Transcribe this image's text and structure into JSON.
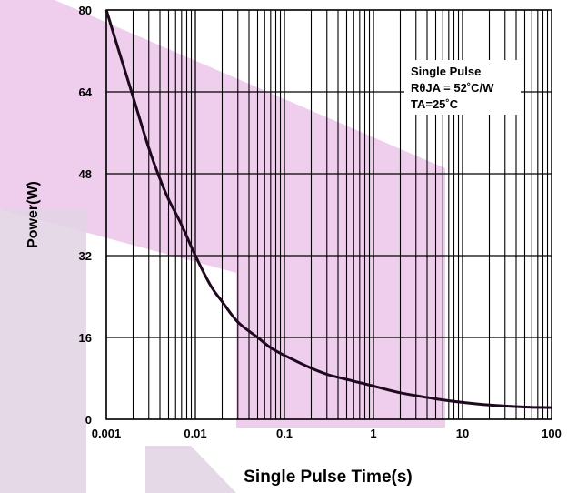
{
  "chart_data": {
    "type": "line",
    "xlabel": "Single Pulse Time(s)",
    "ylabel": "Power(W)",
    "x_scale": "log",
    "xlim": [
      0.001,
      100
    ],
    "ylim": [
      0,
      80
    ],
    "x_ticks": [
      "0.001",
      "0.01",
      "0.1",
      "1",
      "10",
      "100"
    ],
    "y_ticks": [
      "0",
      "16",
      "32",
      "48",
      "64",
      "80"
    ],
    "grid": true,
    "annotation": [
      "Single Pulse",
      "RθJA = 52˚C/W",
      "TA=25˚C"
    ],
    "series": [
      {
        "color": "#1e0a1e",
        "x": [
          0.001,
          0.0015,
          0.002,
          0.003,
          0.004,
          0.005,
          0.007,
          0.01,
          0.015,
          0.02,
          0.03,
          0.05,
          0.07,
          0.1,
          0.2,
          0.3,
          0.5,
          1,
          2,
          5,
          10,
          20,
          50,
          100
        ],
        "y": [
          80,
          70,
          63,
          53,
          47,
          43,
          38,
          32,
          26,
          23,
          19,
          16,
          14,
          12.5,
          10,
          8.8,
          7.8,
          6.5,
          5.2,
          4,
          3.3,
          2.8,
          2.4,
          2.3
        ]
      }
    ]
  },
  "watermark": {
    "colors": [
      "#ecc6ea",
      "#e2d4e4"
    ]
  }
}
